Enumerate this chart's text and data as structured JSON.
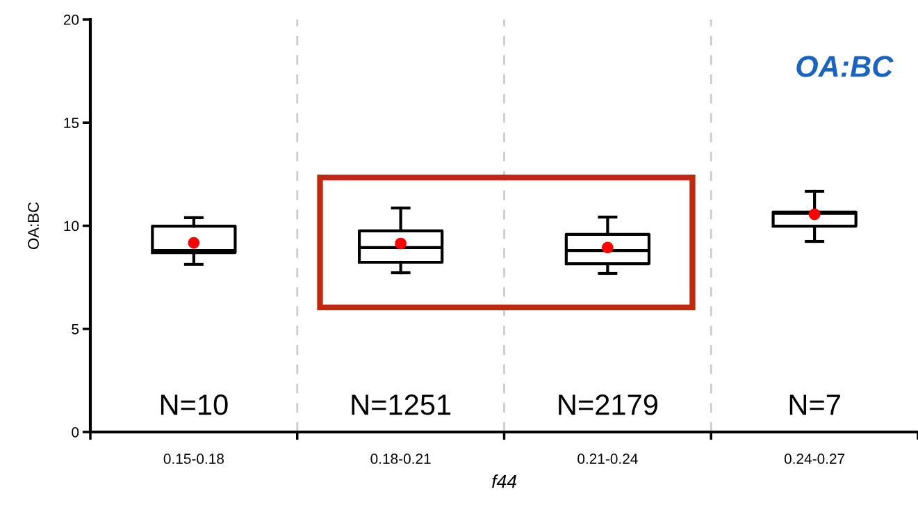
{
  "chart_data": {
    "type": "box",
    "ylabel": "OA:BC",
    "xlabel": "f44",
    "categories": [
      "0.15-0.18",
      "0.18-0.21",
      "0.21-0.24",
      "0.24-0.27"
    ],
    "series": [
      {
        "color": "#000000",
        "boxes": [
          {
            "low": 8.13,
            "q1": 8.7,
            "median": 8.8,
            "q3": 9.98,
            "high": 10.39,
            "mean": 9.17
          },
          {
            "low": 7.72,
            "q1": 8.23,
            "median": 8.94,
            "q3": 9.75,
            "high": 10.86,
            "mean": 9.14
          },
          {
            "low": 7.69,
            "q1": 8.16,
            "median": 8.8,
            "q3": 9.58,
            "high": 10.42,
            "mean": 8.94
          },
          {
            "low": 9.24,
            "q1": 9.98,
            "median": 10.6,
            "q3": 10.66,
            "high": 11.67,
            "mean": 10.55
          }
        ]
      }
    ],
    "ylim": [
      0,
      20
    ],
    "yticks": [
      0,
      5,
      10,
      15,
      20
    ],
    "grid": "x",
    "annotations": [
      "OA:BC",
      "N=10",
      "N=1251",
      "N=2179",
      "N=7"
    ]
  }
}
